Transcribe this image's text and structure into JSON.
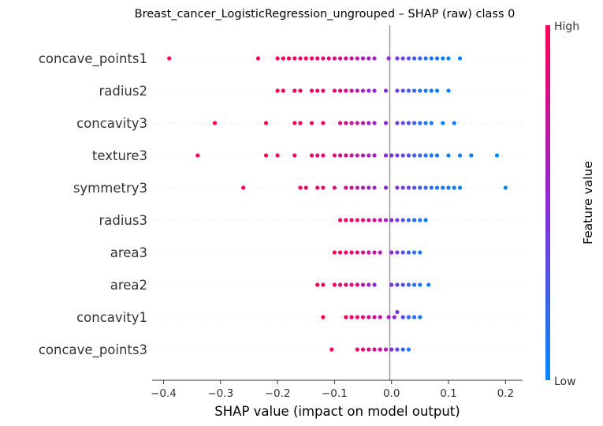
{
  "chart_data": {
    "type": "scatter",
    "subtype": "shap-beeswarm",
    "title": "Breast_cancer_LogisticRegression_ungrouped – SHAP (raw) class 0",
    "xlabel": "SHAP value (impact on model output)",
    "xlim": [
      -0.42,
      0.23
    ],
    "xticks": [
      -0.4,
      -0.3,
      -0.2,
      -0.1,
      0.0,
      0.1,
      0.2
    ],
    "xtick_labels": [
      "−0.4",
      "−0.3",
      "−0.2",
      "−0.1",
      "0.0",
      "0.1",
      "0.2"
    ],
    "colorbar": {
      "label": "Feature value",
      "high_label": "High",
      "low_label": "Low",
      "high_color": "#ff0052",
      "mid_color": "#8e2bd8",
      "low_color": "#008bfb"
    },
    "zero_line_color": "#999999",
    "features": [
      {
        "name": "concave_points1",
        "points": [
          [
            -0.39,
            1
          ],
          [
            -0.234,
            1
          ],
          [
            -0.2,
            0.95
          ],
          [
            -0.19,
            0.95
          ],
          [
            -0.18,
            0.95
          ],
          [
            -0.17,
            0.95
          ],
          [
            -0.16,
            0.9
          ],
          [
            -0.15,
            0.95
          ],
          [
            -0.14,
            0.9
          ],
          [
            -0.13,
            0.9
          ],
          [
            -0.12,
            0.9
          ],
          [
            -0.11,
            0.85
          ],
          [
            -0.1,
            0.85
          ],
          [
            -0.09,
            0.8
          ],
          [
            -0.08,
            0.8
          ],
          [
            -0.07,
            0.75
          ],
          [
            -0.06,
            0.7
          ],
          [
            -0.05,
            0.65
          ],
          [
            -0.04,
            0.6
          ],
          [
            -0.03,
            0.55
          ],
          [
            -0.005,
            0.5
          ],
          [
            0.01,
            0.4
          ],
          [
            0.02,
            0.35
          ],
          [
            0.03,
            0.3
          ],
          [
            0.04,
            0.25
          ],
          [
            0.05,
            0.2
          ],
          [
            0.06,
            0.15
          ],
          [
            0.07,
            0.1
          ],
          [
            0.08,
            0.1
          ],
          [
            0.09,
            0.05
          ],
          [
            0.1,
            0.05
          ],
          [
            0.12,
            0.05
          ]
        ]
      },
      {
        "name": "radius2",
        "points": [
          [
            -0.2,
            1
          ],
          [
            -0.19,
            0.95
          ],
          [
            -0.17,
            0.95
          ],
          [
            -0.16,
            0.95
          ],
          [
            -0.14,
            0.9
          ],
          [
            -0.13,
            0.9
          ],
          [
            -0.12,
            0.9
          ],
          [
            -0.1,
            0.85
          ],
          [
            -0.09,
            0.85
          ],
          [
            -0.08,
            0.8
          ],
          [
            -0.07,
            0.75
          ],
          [
            -0.06,
            0.7
          ],
          [
            -0.05,
            0.6
          ],
          [
            -0.04,
            0.55
          ],
          [
            -0.03,
            0.5
          ],
          [
            -0.01,
            0.45
          ],
          [
            0.01,
            0.35
          ],
          [
            0.02,
            0.3
          ],
          [
            0.03,
            0.25
          ],
          [
            0.04,
            0.2
          ],
          [
            0.05,
            0.15
          ],
          [
            0.06,
            0.1
          ],
          [
            0.07,
            0.1
          ],
          [
            0.08,
            0.05
          ],
          [
            0.1,
            0.05
          ]
        ]
      },
      {
        "name": "concavity3",
        "points": [
          [
            -0.31,
            1
          ],
          [
            -0.22,
            1
          ],
          [
            -0.17,
            0.95
          ],
          [
            -0.16,
            0.95
          ],
          [
            -0.14,
            0.9
          ],
          [
            -0.12,
            0.9
          ],
          [
            -0.09,
            0.85
          ],
          [
            -0.08,
            0.8
          ],
          [
            -0.07,
            0.75
          ],
          [
            -0.06,
            0.7
          ],
          [
            -0.05,
            0.65
          ],
          [
            -0.04,
            0.6
          ],
          [
            -0.03,
            0.55
          ],
          [
            -0.01,
            0.5
          ],
          [
            0.01,
            0.4
          ],
          [
            0.02,
            0.35
          ],
          [
            0.03,
            0.3
          ],
          [
            0.04,
            0.2
          ],
          [
            0.05,
            0.15
          ],
          [
            0.06,
            0.1
          ],
          [
            0.07,
            0.1
          ],
          [
            0.09,
            0.05
          ],
          [
            0.11,
            0.05
          ]
        ]
      },
      {
        "name": "texture3",
        "points": [
          [
            -0.34,
            1
          ],
          [
            -0.22,
            1
          ],
          [
            -0.2,
            0.95
          ],
          [
            -0.17,
            0.95
          ],
          [
            -0.14,
            0.9
          ],
          [
            -0.13,
            0.9
          ],
          [
            -0.12,
            0.9
          ],
          [
            -0.1,
            0.85
          ],
          [
            -0.09,
            0.8
          ],
          [
            -0.08,
            0.8
          ],
          [
            -0.07,
            0.75
          ],
          [
            -0.06,
            0.7
          ],
          [
            -0.05,
            0.65
          ],
          [
            -0.04,
            0.6
          ],
          [
            -0.03,
            0.55
          ],
          [
            -0.01,
            0.5
          ],
          [
            0.0,
            0.45
          ],
          [
            0.01,
            0.4
          ],
          [
            0.02,
            0.35
          ],
          [
            0.03,
            0.3
          ],
          [
            0.04,
            0.25
          ],
          [
            0.05,
            0.2
          ],
          [
            0.06,
            0.15
          ],
          [
            0.07,
            0.1
          ],
          [
            0.08,
            0.1
          ],
          [
            0.1,
            0.05
          ],
          [
            0.12,
            0.05
          ],
          [
            0.14,
            0.05
          ],
          [
            0.185,
            0
          ]
        ]
      },
      {
        "name": "symmetry3",
        "points": [
          [
            -0.26,
            1
          ],
          [
            -0.16,
            0.95
          ],
          [
            -0.15,
            0.95
          ],
          [
            -0.13,
            0.9
          ],
          [
            -0.12,
            0.9
          ],
          [
            -0.1,
            0.85
          ],
          [
            -0.08,
            0.8
          ],
          [
            -0.07,
            0.75
          ],
          [
            -0.06,
            0.7
          ],
          [
            -0.05,
            0.65
          ],
          [
            -0.04,
            0.6
          ],
          [
            -0.03,
            0.55
          ],
          [
            -0.01,
            0.5
          ],
          [
            0.01,
            0.45
          ],
          [
            0.02,
            0.4
          ],
          [
            0.03,
            0.35
          ],
          [
            0.04,
            0.3
          ],
          [
            0.05,
            0.25
          ],
          [
            0.06,
            0.2
          ],
          [
            0.07,
            0.15
          ],
          [
            0.08,
            0.1
          ],
          [
            0.09,
            0.1
          ],
          [
            0.1,
            0.05
          ],
          [
            0.11,
            0.05
          ],
          [
            0.12,
            0.05
          ],
          [
            0.2,
            0
          ]
        ]
      },
      {
        "name": "radius3",
        "points": [
          [
            -0.09,
            1
          ],
          [
            -0.08,
            0.95
          ],
          [
            -0.07,
            0.9
          ],
          [
            -0.06,
            0.9
          ],
          [
            -0.05,
            0.85
          ],
          [
            -0.04,
            0.8
          ],
          [
            -0.03,
            0.75
          ],
          [
            -0.02,
            0.7
          ],
          [
            -0.01,
            0.6
          ],
          [
            0.0,
            0.5
          ],
          [
            0.01,
            0.4
          ],
          [
            0.02,
            0.3
          ],
          [
            0.03,
            0.2
          ],
          [
            0.04,
            0.15
          ],
          [
            0.05,
            0.1
          ],
          [
            0.06,
            0.05
          ]
        ]
      },
      {
        "name": "area3",
        "points": [
          [
            -0.1,
            1
          ],
          [
            -0.09,
            0.95
          ],
          [
            -0.08,
            0.95
          ],
          [
            -0.07,
            0.9
          ],
          [
            -0.06,
            0.85
          ],
          [
            -0.05,
            0.8
          ],
          [
            -0.04,
            0.75
          ],
          [
            -0.03,
            0.7
          ],
          [
            -0.02,
            0.65
          ],
          [
            0.0,
            0.5
          ],
          [
            0.01,
            0.4
          ],
          [
            0.02,
            0.3
          ],
          [
            0.03,
            0.2
          ],
          [
            0.04,
            0.15
          ],
          [
            0.05,
            0.1
          ]
        ]
      },
      {
        "name": "area2",
        "points": [
          [
            -0.13,
            1
          ],
          [
            -0.12,
            0.95
          ],
          [
            -0.1,
            0.95
          ],
          [
            -0.09,
            0.9
          ],
          [
            -0.08,
            0.9
          ],
          [
            -0.07,
            0.85
          ],
          [
            -0.06,
            0.8
          ],
          [
            -0.05,
            0.7
          ],
          [
            -0.04,
            0.6
          ],
          [
            -0.03,
            0.5
          ],
          [
            0.0,
            0.45
          ],
          [
            0.01,
            0.35
          ],
          [
            0.02,
            0.3
          ],
          [
            0.03,
            0.2
          ],
          [
            0.04,
            0.15
          ],
          [
            0.05,
            0.1
          ],
          [
            0.065,
            0.05
          ]
        ]
      },
      {
        "name": "concavity1",
        "points": [
          [
            -0.12,
            1
          ],
          [
            -0.08,
            0.95
          ],
          [
            -0.07,
            0.9
          ],
          [
            -0.06,
            0.9
          ],
          [
            -0.05,
            0.85
          ],
          [
            -0.04,
            0.8
          ],
          [
            -0.03,
            0.75
          ],
          [
            -0.02,
            0.7
          ],
          [
            -0.005,
            0.6
          ],
          [
            0.005,
            0.5
          ],
          [
            0.01,
            0.4
          ],
          [
            0.02,
            0.3
          ],
          [
            0.03,
            0.2
          ],
          [
            0.04,
            0.15
          ],
          [
            0.05,
            0.1
          ]
        ]
      },
      {
        "name": "concave_points3",
        "points": [
          [
            -0.105,
            1
          ],
          [
            -0.06,
            0.95
          ],
          [
            -0.05,
            0.9
          ],
          [
            -0.04,
            0.85
          ],
          [
            -0.03,
            0.8
          ],
          [
            -0.02,
            0.75
          ],
          [
            -0.01,
            0.65
          ],
          [
            0.0,
            0.5
          ],
          [
            0.01,
            0.35
          ],
          [
            0.02,
            0.2
          ],
          [
            0.03,
            0.1
          ]
        ]
      }
    ]
  }
}
